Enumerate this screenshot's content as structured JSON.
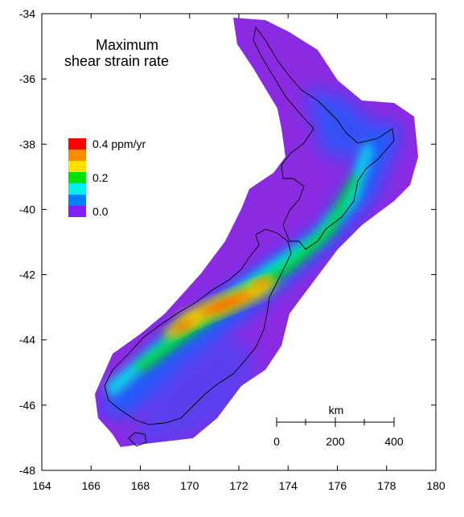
{
  "title": {
    "line1": "Maximum",
    "line2": "shear strain rate"
  },
  "legend": {
    "items": [
      {
        "label": "0.4 ppm/yr",
        "color": "#ff0000"
      },
      {
        "label": "",
        "color": "#ff8c00"
      },
      {
        "label": "",
        "color": "#ffe000"
      },
      {
        "label": "0.2",
        "color": "#00e000"
      },
      {
        "label": "",
        "color": "#00f0f0"
      },
      {
        "label": "",
        "color": "#0080ff"
      },
      {
        "label": "0.0",
        "color": "#8020ff"
      }
    ]
  },
  "axes": {
    "x": {
      "min": 164,
      "max": 180,
      "ticks": [
        "164",
        "166",
        "168",
        "170",
        "172",
        "174",
        "176",
        "178",
        "180"
      ]
    },
    "y": {
      "min": -48,
      "max": -34,
      "ticks": [
        "-34",
        "-36",
        "-38",
        "-40",
        "-42",
        "-44",
        "-46",
        "-48"
      ]
    }
  },
  "scale_bar": {
    "unit": "km",
    "labels": [
      "0",
      "200",
      "400"
    ]
  },
  "colors": {
    "background_field": "#8a2be2",
    "coastline": "#000000"
  }
}
